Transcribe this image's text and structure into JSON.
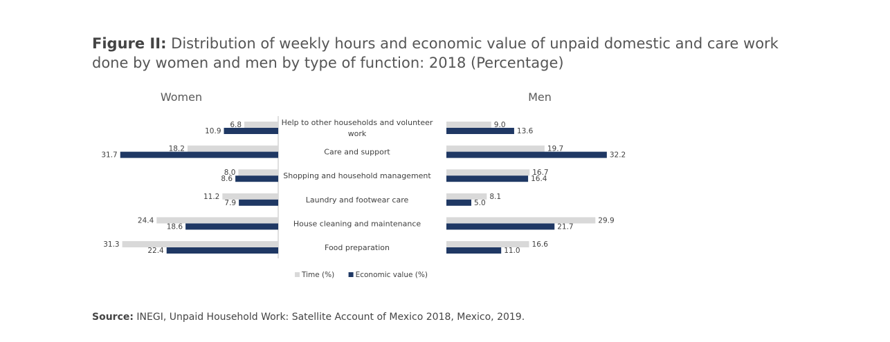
{
  "title": {
    "prefix": "Figure II:",
    "text": "Distribution of weekly hours and economic value of unpaid domestic and care work done by women and men by type of function: 2018 (Percentage)"
  },
  "source": {
    "prefix": "Source:",
    "text": "INEGI, Unpaid Household Work: Satellite Account of Mexico 2018, Mexico, 2019."
  },
  "colors": {
    "time": "#d9d9d9",
    "economic_value": "#1f3864"
  },
  "chart_data": {
    "type": "bar",
    "orientation": "horizontal",
    "layout": "back-to-back",
    "categories": [
      "Help to other households and volunteer work",
      "Care and support",
      "Shopping and household management",
      "Laundry and footwear care",
      "House cleaning and maintenance",
      "Food preparation"
    ],
    "panels": [
      {
        "title": "Women",
        "direction": "left",
        "series": [
          {
            "name": "Time (%)",
            "values": [
              6.8,
              18.2,
              8.0,
              11.2,
              24.4,
              31.3
            ]
          },
          {
            "name": "Economic value (%)",
            "values": [
              10.9,
              31.7,
              8.6,
              7.9,
              18.6,
              22.4
            ]
          }
        ]
      },
      {
        "title": "Men",
        "direction": "right",
        "series": [
          {
            "name": "Time (%)",
            "values": [
              9.0,
              19.7,
              16.7,
              8.1,
              29.9,
              16.6
            ]
          },
          {
            "name": "Economic value (%)",
            "values": [
              13.6,
              32.2,
              16.4,
              5.0,
              21.7,
              11.0
            ]
          }
        ]
      }
    ],
    "legend": {
      "position": "bottom",
      "entries": [
        "Time (%)",
        "Economic value (%)"
      ]
    }
  }
}
